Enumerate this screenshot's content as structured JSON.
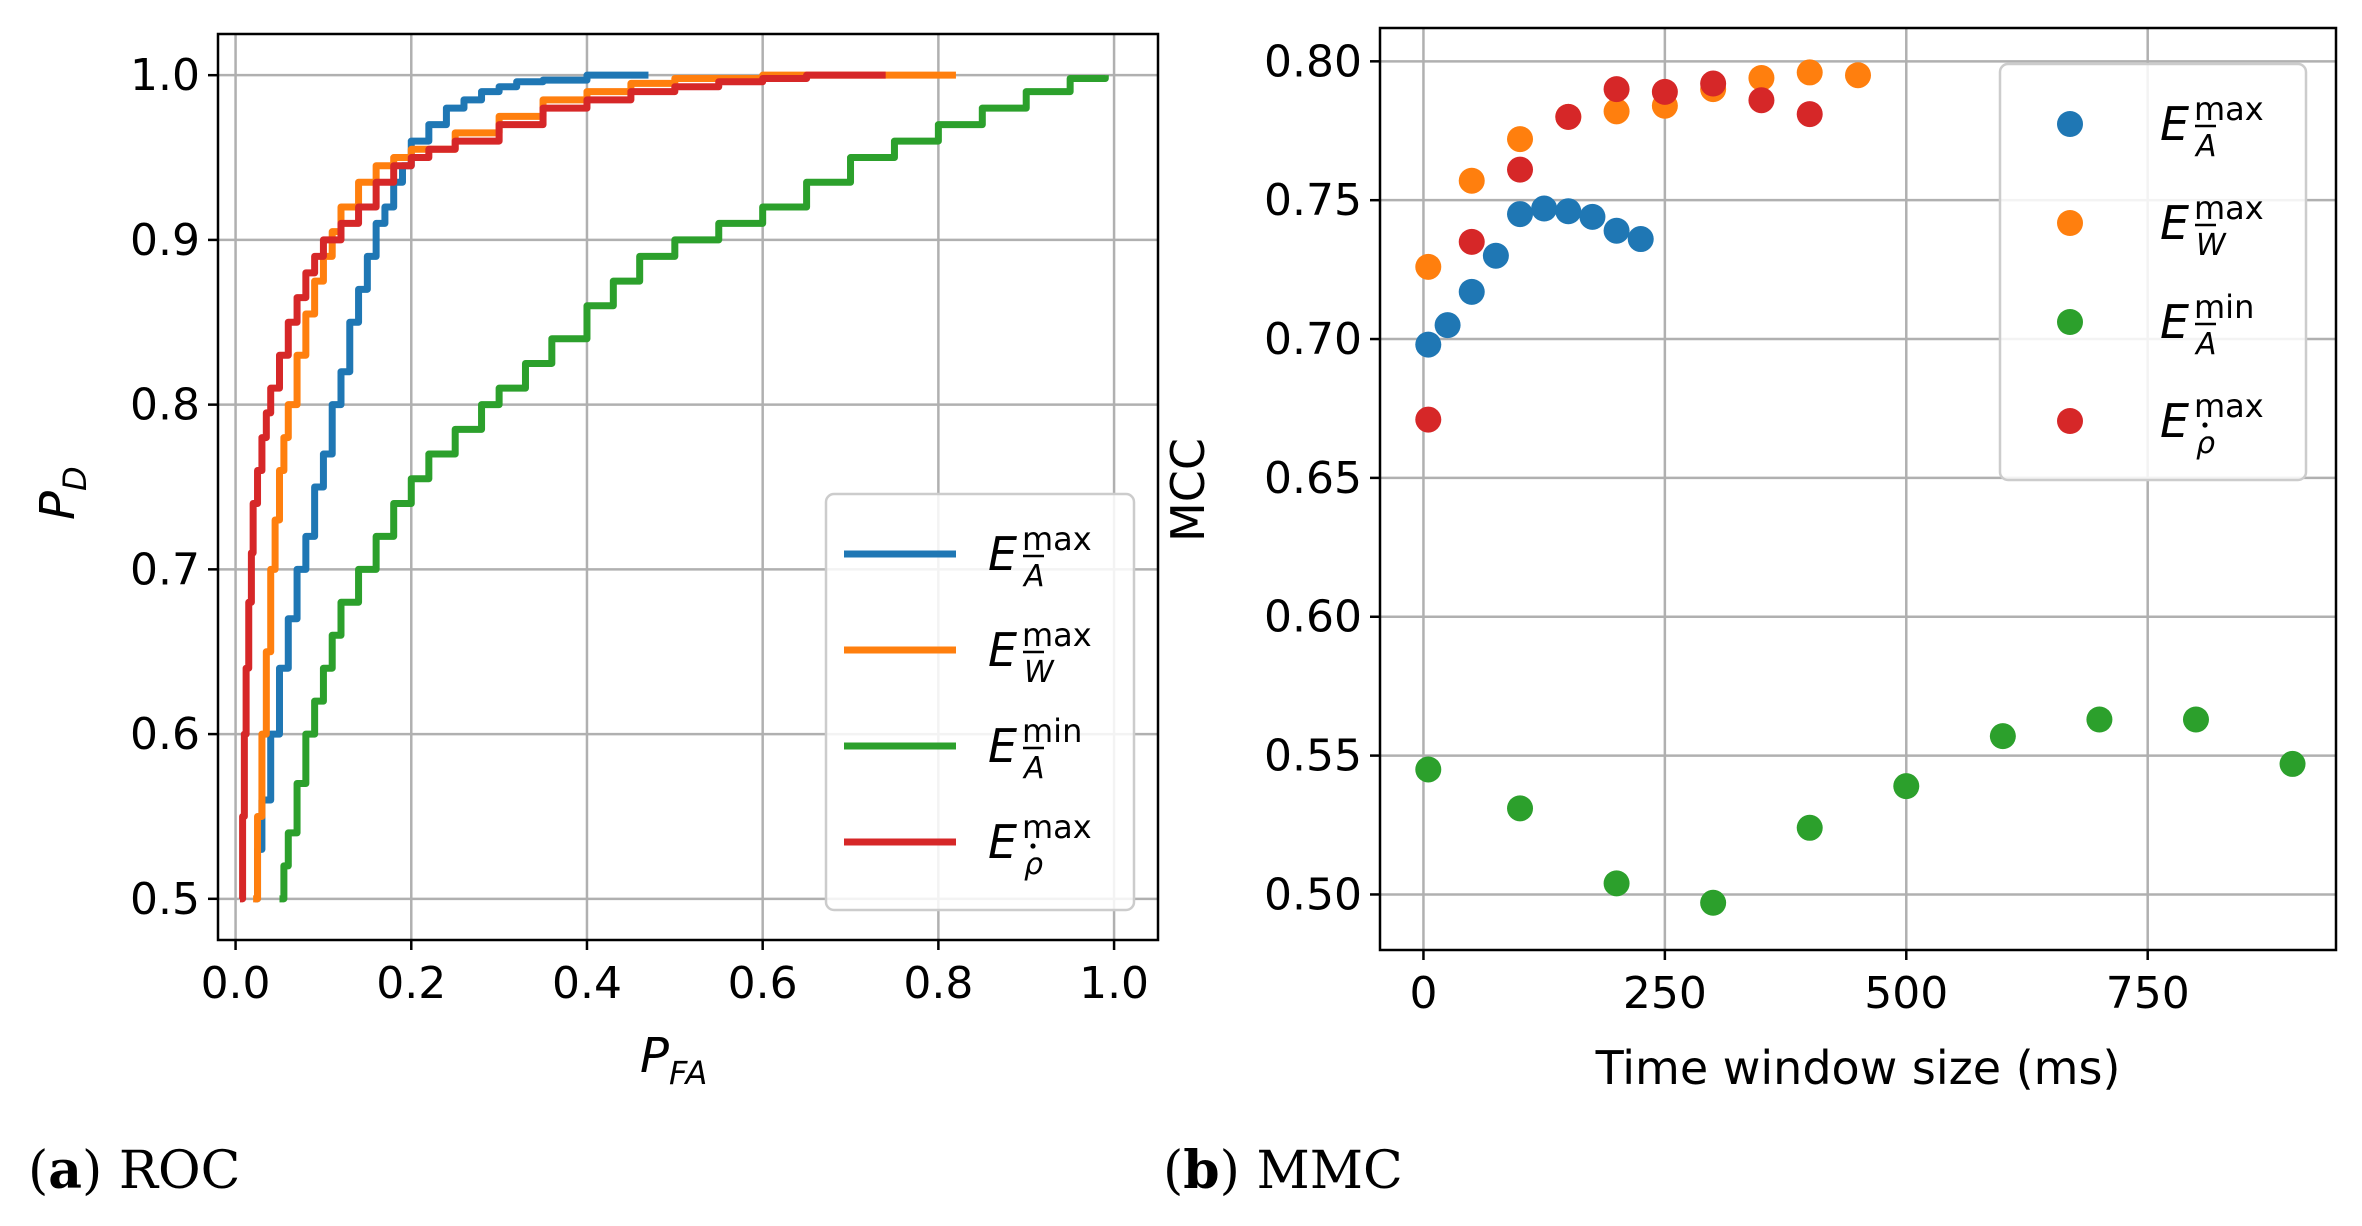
{
  "chart_data": [
    {
      "type": "line",
      "panel_label": "a",
      "caption": "ROC",
      "xlabel_main": "P",
      "xlabel_sub": "FA",
      "ylabel_main": "P",
      "ylabel_sub": "D",
      "xlim": [
        -0.02,
        1.05
      ],
      "ylim": [
        0.475,
        1.025
      ],
      "xticks": [
        0.0,
        0.2,
        0.4,
        0.6,
        0.8,
        1.0
      ],
      "xtick_labels": [
        "0.0",
        "0.2",
        "0.4",
        "0.6",
        "0.8",
        "1.0"
      ],
      "yticks": [
        0.5,
        0.6,
        0.7,
        0.8,
        0.9,
        1.0
      ],
      "ytick_labels": [
        "0.5",
        "0.6",
        "0.7",
        "0.8",
        "0.9",
        "1.0"
      ],
      "grid": true,
      "legend_position": "lower-right",
      "series": [
        {
          "name": "E_A_max",
          "E": "E",
          "sup": "max",
          "sub": "A",
          "bar": "overline",
          "color": "#1f77b4",
          "x": [
            0.022,
            0.025,
            0.03,
            0.04,
            0.05,
            0.06,
            0.07,
            0.08,
            0.09,
            0.1,
            0.11,
            0.12,
            0.13,
            0.14,
            0.15,
            0.16,
            0.17,
            0.18,
            0.19,
            0.2,
            0.22,
            0.24,
            0.26,
            0.28,
            0.3,
            0.32,
            0.35,
            0.4,
            0.47
          ],
          "y": [
            0.5,
            0.53,
            0.56,
            0.6,
            0.64,
            0.67,
            0.7,
            0.72,
            0.75,
            0.77,
            0.8,
            0.82,
            0.85,
            0.87,
            0.89,
            0.91,
            0.92,
            0.935,
            0.945,
            0.96,
            0.97,
            0.98,
            0.985,
            0.99,
            0.993,
            0.996,
            0.997,
            1.0,
            1.0
          ]
        },
        {
          "name": "E_W_max",
          "E": "E",
          "sup": "max",
          "sub": "W",
          "bar": "overline",
          "color": "#ff7f0e",
          "x": [
            0.02,
            0.025,
            0.03,
            0.035,
            0.04,
            0.045,
            0.05,
            0.055,
            0.06,
            0.07,
            0.08,
            0.09,
            0.1,
            0.11,
            0.12,
            0.14,
            0.16,
            0.18,
            0.2,
            0.25,
            0.3,
            0.35,
            0.4,
            0.45,
            0.5,
            0.6,
            0.7,
            0.75,
            0.82
          ],
          "y": [
            0.5,
            0.55,
            0.6,
            0.65,
            0.7,
            0.73,
            0.76,
            0.78,
            0.8,
            0.83,
            0.855,
            0.875,
            0.89,
            0.905,
            0.92,
            0.935,
            0.945,
            0.95,
            0.955,
            0.965,
            0.975,
            0.985,
            0.99,
            0.995,
            0.998,
            1.0,
            1.0,
            1.0,
            1.0
          ]
        },
        {
          "name": "E_A_min",
          "E": "E",
          "sup": "min",
          "sub": "A",
          "bar": "overline",
          "color": "#2ca02c",
          "x": [
            0.05,
            0.055,
            0.06,
            0.07,
            0.08,
            0.09,
            0.1,
            0.11,
            0.12,
            0.14,
            0.16,
            0.18,
            0.2,
            0.22,
            0.25,
            0.28,
            0.3,
            0.33,
            0.36,
            0.4,
            0.43,
            0.46,
            0.5,
            0.55,
            0.6,
            0.65,
            0.7,
            0.75,
            0.8,
            0.85,
            0.9,
            0.95,
            0.99
          ],
          "y": [
            0.5,
            0.52,
            0.54,
            0.57,
            0.6,
            0.62,
            0.64,
            0.66,
            0.68,
            0.7,
            0.72,
            0.74,
            0.755,
            0.77,
            0.785,
            0.8,
            0.81,
            0.825,
            0.84,
            0.86,
            0.875,
            0.89,
            0.9,
            0.91,
            0.92,
            0.935,
            0.95,
            0.96,
            0.97,
            0.98,
            0.99,
            0.998,
            1.0
          ]
        },
        {
          "name": "E_rho_max",
          "E": "E",
          "sup": "max",
          "sub": "ρ",
          "bar": "dot",
          "color": "#d62728",
          "x": [
            0.005,
            0.008,
            0.01,
            0.012,
            0.015,
            0.018,
            0.02,
            0.025,
            0.03,
            0.035,
            0.04,
            0.05,
            0.06,
            0.07,
            0.08,
            0.09,
            0.1,
            0.12,
            0.14,
            0.16,
            0.18,
            0.2,
            0.22,
            0.25,
            0.3,
            0.35,
            0.4,
            0.45,
            0.5,
            0.55,
            0.6,
            0.65,
            0.7,
            0.74
          ],
          "y": [
            0.5,
            0.55,
            0.6,
            0.64,
            0.68,
            0.71,
            0.74,
            0.76,
            0.78,
            0.795,
            0.81,
            0.83,
            0.85,
            0.865,
            0.88,
            0.89,
            0.9,
            0.91,
            0.92,
            0.935,
            0.945,
            0.95,
            0.955,
            0.96,
            0.97,
            0.98,
            0.985,
            0.99,
            0.993,
            0.996,
            0.998,
            1.0,
            1.0,
            1.0
          ]
        }
      ]
    },
    {
      "type": "scatter",
      "panel_label": "b",
      "caption": "MMC",
      "xlabel": "Time window size (ms)",
      "ylabel": "MCC",
      "xlim": [
        -45,
        945
      ],
      "ylim": [
        0.48,
        0.812
      ],
      "xticks": [
        0,
        250,
        500,
        750
      ],
      "xtick_labels": [
        "0",
        "250",
        "500",
        "750"
      ],
      "yticks": [
        0.5,
        0.55,
        0.6,
        0.65,
        0.7,
        0.75,
        0.8
      ],
      "ytick_labels": [
        "0.50",
        "0.55",
        "0.60",
        "0.65",
        "0.70",
        "0.75",
        "0.80"
      ],
      "grid": true,
      "legend_position": "upper-right",
      "series": [
        {
          "name": "E_A_max",
          "E": "E",
          "sup": "max",
          "sub": "A",
          "bar": "overline",
          "color": "#1f77b4",
          "x": [
            5,
            25,
            50,
            75,
            100,
            125,
            150,
            175,
            200,
            225
          ],
          "y": [
            0.698,
            0.705,
            0.717,
            0.73,
            0.745,
            0.747,
            0.746,
            0.744,
            0.739,
            0.736
          ]
        },
        {
          "name": "E_W_max",
          "E": "E",
          "sup": "max",
          "sub": "W",
          "bar": "overline",
          "color": "#ff7f0e",
          "x": [
            5,
            50,
            100,
            150,
            200,
            250,
            300,
            350,
            400,
            450
          ],
          "y": [
            0.726,
            0.757,
            0.772,
            0.78,
            0.782,
            0.784,
            0.79,
            0.794,
            0.796,
            0.795
          ]
        },
        {
          "name": "E_A_min",
          "E": "E",
          "sup": "min",
          "sub": "A",
          "bar": "overline",
          "color": "#2ca02c",
          "x": [
            5,
            100,
            200,
            300,
            400,
            500,
            600,
            700,
            800,
            900
          ],
          "y": [
            0.545,
            0.531,
            0.504,
            0.497,
            0.524,
            0.539,
            0.557,
            0.563,
            0.563,
            0.547
          ]
        },
        {
          "name": "E_rho_max",
          "E": "E",
          "sup": "max",
          "sub": "ρ",
          "bar": "dot",
          "color": "#d62728",
          "x": [
            5,
            50,
            100,
            150,
            200,
            250,
            300,
            350,
            400
          ],
          "y": [
            0.671,
            0.735,
            0.761,
            0.78,
            0.79,
            0.789,
            0.792,
            0.786,
            0.781
          ]
        }
      ]
    }
  ]
}
